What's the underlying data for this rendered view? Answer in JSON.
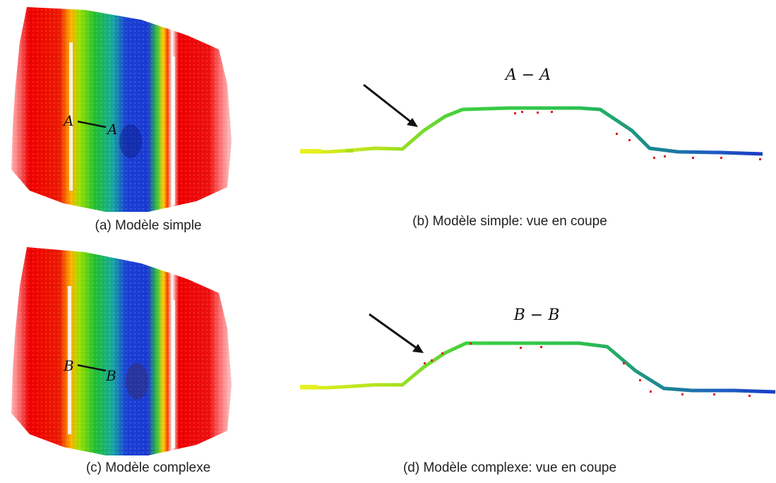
{
  "panels": {
    "a": {
      "caption": "(a) Modèle simple",
      "label_left": "A",
      "label_right": "A"
    },
    "b": {
      "caption": "(b) Modèle simple: vue en coupe",
      "section_title": "A − A"
    },
    "c": {
      "caption": "(c) Modèle complexe",
      "label_left": "B",
      "label_right": "B"
    },
    "d": {
      "caption": "(d) Modèle complexe: vue en coupe",
      "section_title": "B − B"
    }
  },
  "colors": {
    "high": "#e00000",
    "mid_high": "#ffd800",
    "mid": "#22cc22",
    "low": "#1e3ccc",
    "annotation": "#111111"
  }
}
